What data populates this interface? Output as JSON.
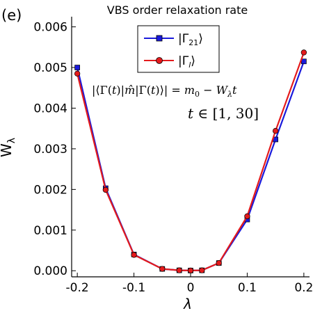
{
  "panel_label": "(e)",
  "chart_data": {
    "type": "line",
    "title": "VBS order relaxation rate",
    "xlabel": "λ",
    "ylabel": "W_λ",
    "xlim": [
      -0.21,
      0.21
    ],
    "ylim": [
      -0.00015,
      0.00625
    ],
    "xticks": [
      -0.2,
      -0.1,
      0.0,
      0.1,
      0.2
    ],
    "xtick_labels": [
      "-0.2",
      "-0.1",
      "0",
      "0.1",
      "0.2"
    ],
    "yticks": [
      0.0,
      0.001,
      0.002,
      0.003,
      0.004,
      0.005,
      0.006
    ],
    "ytick_labels": [
      "0.000",
      "0.001",
      "0.002",
      "0.003",
      "0.004",
      "0.005",
      "0.006"
    ],
    "grid": false,
    "legend_position": "top-center",
    "annotations": [
      "|⟨Γ(t)|m̂|Γ(t)⟩| = m0 − Wλt",
      "t ∈ [1, 30]"
    ],
    "series": [
      {
        "name": "|Γ21⟩",
        "color": "#1a1adb",
        "marker": "square",
        "x": [
          -0.2,
          -0.15,
          -0.1,
          -0.05,
          -0.02,
          0.0,
          0.02,
          0.05,
          0.1,
          0.15,
          0.2
        ],
        "y": [
          0.005,
          0.00203,
          0.0004,
          4.5e-05,
          1e-05,
          5e-06,
          1e-05,
          0.00019,
          0.00126,
          0.00323,
          0.00515
        ]
      },
      {
        "name": "|Γl⟩",
        "color": "#e41a1c",
        "marker": "circle",
        "x": [
          -0.2,
          -0.15,
          -0.1,
          -0.05,
          -0.02,
          0.0,
          0.02,
          0.05,
          0.1,
          0.15,
          0.2
        ],
        "y": [
          0.00485,
          0.00199,
          0.00039,
          4.5e-05,
          1e-05,
          5e-06,
          1e-05,
          0.00019,
          0.00134,
          0.00344,
          0.00537
        ]
      }
    ]
  }
}
